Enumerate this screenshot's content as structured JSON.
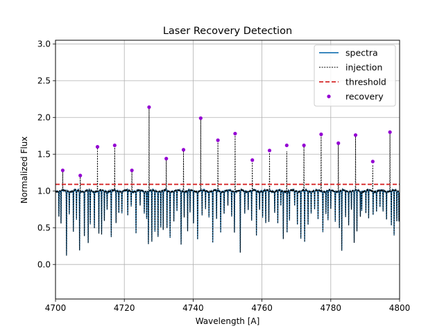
{
  "chart_data": {
    "type": "line",
    "title": "Laser Recovery Detection",
    "xlabel": "Wavelength [A]",
    "ylabel": "Normalized Flux",
    "xlim": [
      4700,
      4800
    ],
    "ylim": [
      -0.47,
      3.05
    ],
    "xticks": [
      4700,
      4720,
      4740,
      4760,
      4780,
      4800
    ],
    "yticks": [
      0.0,
      0.5,
      1.0,
      1.5,
      2.0,
      2.5,
      3.0
    ],
    "xtick_labels": [
      "4700",
      "4720",
      "4740",
      "4760",
      "4780",
      "4800"
    ],
    "ytick_labels": [
      "0.0",
      "0.5",
      "1.0",
      "1.5",
      "2.0",
      "2.5",
      "3.0"
    ],
    "grid": true,
    "legend_position": "top-right",
    "series": [
      {
        "name": "spectra",
        "style": "solid line",
        "color": "#1f77b4"
      },
      {
        "name": "injection",
        "style": "dashed line",
        "color": "#000000"
      },
      {
        "name": "threshold",
        "style": "dashed line",
        "color": "#d62728",
        "y": 1.09
      },
      {
        "name": "recovery",
        "style": "markers",
        "color": "#9400d3"
      }
    ],
    "recovery": {
      "x": [
        4702.1,
        4707.2,
        4712.2,
        4717.2,
        4722.2,
        4727.2,
        4732.2,
        4737.2,
        4742.2,
        4747.2,
        4752.2,
        4757.2,
        4762.2,
        4767.2,
        4772.2,
        4777.2,
        4782.2,
        4787.2,
        4792.2,
        4797.2
      ],
      "y": [
        1.28,
        1.21,
        1.6,
        1.62,
        1.28,
        2.14,
        1.44,
        1.56,
        1.99,
        1.69,
        1.78,
        1.42,
        1.55,
        1.62,
        1.62,
        1.77,
        1.65,
        1.76,
        1.4,
        1.8
      ]
    },
    "absorption_lines": [
      {
        "x": 4701.0,
        "depth": 0.35
      },
      {
        "x": 4701.6,
        "depth": 0.45
      },
      {
        "x": 4703.2,
        "depth": 0.88
      },
      {
        "x": 4704.0,
        "depth": 0.3
      },
      {
        "x": 4705.2,
        "depth": 0.55
      },
      {
        "x": 4706.1,
        "depth": 0.4
      },
      {
        "x": 4707.0,
        "depth": 0.8
      },
      {
        "x": 4708.4,
        "depth": 0.62
      },
      {
        "x": 4709.5,
        "depth": 0.72
      },
      {
        "x": 4710.1,
        "depth": 0.45
      },
      {
        "x": 4711.3,
        "depth": 0.5
      },
      {
        "x": 4712.6,
        "depth": 0.58
      },
      {
        "x": 4713.4,
        "depth": 0.6
      },
      {
        "x": 4714.2,
        "depth": 0.4
      },
      {
        "x": 4715.0,
        "depth": 0.25
      },
      {
        "x": 4716.2,
        "depth": 0.62
      },
      {
        "x": 4717.6,
        "depth": 0.45
      },
      {
        "x": 4718.4,
        "depth": 0.3
      },
      {
        "x": 4719.3,
        "depth": 0.3
      },
      {
        "x": 4721.0,
        "depth": 0.35
      },
      {
        "x": 4722.0,
        "depth": 0.2
      },
      {
        "x": 4723.4,
        "depth": 0.58
      },
      {
        "x": 4724.6,
        "depth": 0.2
      },
      {
        "x": 4725.8,
        "depth": 0.3
      },
      {
        "x": 4726.5,
        "depth": 0.38
      },
      {
        "x": 4727.0,
        "depth": 0.72
      },
      {
        "x": 4728.0,
        "depth": 0.7
      },
      {
        "x": 4728.9,
        "depth": 0.55
      },
      {
        "x": 4729.8,
        "depth": 0.62
      },
      {
        "x": 4730.6,
        "depth": 0.5
      },
      {
        "x": 4731.3,
        "depth": 0.55
      },
      {
        "x": 4732.4,
        "depth": 0.5
      },
      {
        "x": 4733.3,
        "depth": 0.62
      },
      {
        "x": 4734.4,
        "depth": 0.4
      },
      {
        "x": 4735.3,
        "depth": 0.28
      },
      {
        "x": 4736.5,
        "depth": 0.72
      },
      {
        "x": 4737.4,
        "depth": 0.35
      },
      {
        "x": 4738.4,
        "depth": 0.55
      },
      {
        "x": 4739.1,
        "depth": 0.3
      },
      {
        "x": 4740.1,
        "depth": 0.45
      },
      {
        "x": 4741.3,
        "depth": 0.65
      },
      {
        "x": 4742.6,
        "depth": 0.35
      },
      {
        "x": 4743.6,
        "depth": 0.25
      },
      {
        "x": 4744.6,
        "depth": 0.35
      },
      {
        "x": 4745.7,
        "depth": 0.7
      },
      {
        "x": 4746.8,
        "depth": 0.4
      },
      {
        "x": 4748.0,
        "depth": 0.55
      },
      {
        "x": 4749.0,
        "depth": 0.3
      },
      {
        "x": 4750.1,
        "depth": 0.2
      },
      {
        "x": 4751.2,
        "depth": 0.35
      },
      {
        "x": 4752.0,
        "depth": 0.55
      },
      {
        "x": 4753.7,
        "depth": 0.85
      },
      {
        "x": 4755.0,
        "depth": 0.3
      },
      {
        "x": 4756.0,
        "depth": 0.25
      },
      {
        "x": 4757.0,
        "depth": 0.4
      },
      {
        "x": 4758.4,
        "depth": 0.6
      },
      {
        "x": 4759.3,
        "depth": 0.25
      },
      {
        "x": 4760.2,
        "depth": 0.35
      },
      {
        "x": 4761.1,
        "depth": 0.45
      },
      {
        "x": 4762.0,
        "depth": 0.42
      },
      {
        "x": 4763.7,
        "depth": 0.3
      },
      {
        "x": 4764.6,
        "depth": 0.45
      },
      {
        "x": 4765.5,
        "depth": 0.2
      },
      {
        "x": 4766.2,
        "depth": 0.65
      },
      {
        "x": 4767.3,
        "depth": 0.55
      },
      {
        "x": 4768.0,
        "depth": 0.4
      },
      {
        "x": 4769.5,
        "depth": 0.2
      },
      {
        "x": 4770.3,
        "depth": 0.45
      },
      {
        "x": 4771.3,
        "depth": 0.65
      },
      {
        "x": 4772.4,
        "depth": 0.7
      },
      {
        "x": 4773.4,
        "depth": 0.45
      },
      {
        "x": 4774.3,
        "depth": 0.3
      },
      {
        "x": 4775.3,
        "depth": 0.25
      },
      {
        "x": 4776.3,
        "depth": 0.4
      },
      {
        "x": 4777.7,
        "depth": 0.55
      },
      {
        "x": 4778.6,
        "depth": 0.3
      },
      {
        "x": 4779.2,
        "depth": 0.4
      },
      {
        "x": 4780.0,
        "depth": 0.25
      },
      {
        "x": 4781.3,
        "depth": 0.4
      },
      {
        "x": 4782.5,
        "depth": 0.5
      },
      {
        "x": 4783.2,
        "depth": 0.82
      },
      {
        "x": 4784.3,
        "depth": 0.35
      },
      {
        "x": 4785.2,
        "depth": 0.45
      },
      {
        "x": 4786.0,
        "depth": 0.25
      },
      {
        "x": 4786.8,
        "depth": 0.72
      },
      {
        "x": 4787.6,
        "depth": 0.55
      },
      {
        "x": 4788.6,
        "depth": 0.35
      },
      {
        "x": 4789.0,
        "depth": 0.25
      },
      {
        "x": 4790.2,
        "depth": 0.3
      },
      {
        "x": 4791.0,
        "depth": 0.38
      },
      {
        "x": 4792.3,
        "depth": 0.32
      },
      {
        "x": 4793.3,
        "depth": 0.28
      },
      {
        "x": 4794.3,
        "depth": 0.22
      },
      {
        "x": 4795.2,
        "depth": 0.28
      },
      {
        "x": 4796.2,
        "depth": 0.38
      },
      {
        "x": 4797.6,
        "depth": 0.48
      },
      {
        "x": 4798.4,
        "depth": 0.62
      },
      {
        "x": 4799.2,
        "depth": 0.42
      },
      {
        "x": 4799.8,
        "depth": 0.4
      }
    ]
  }
}
